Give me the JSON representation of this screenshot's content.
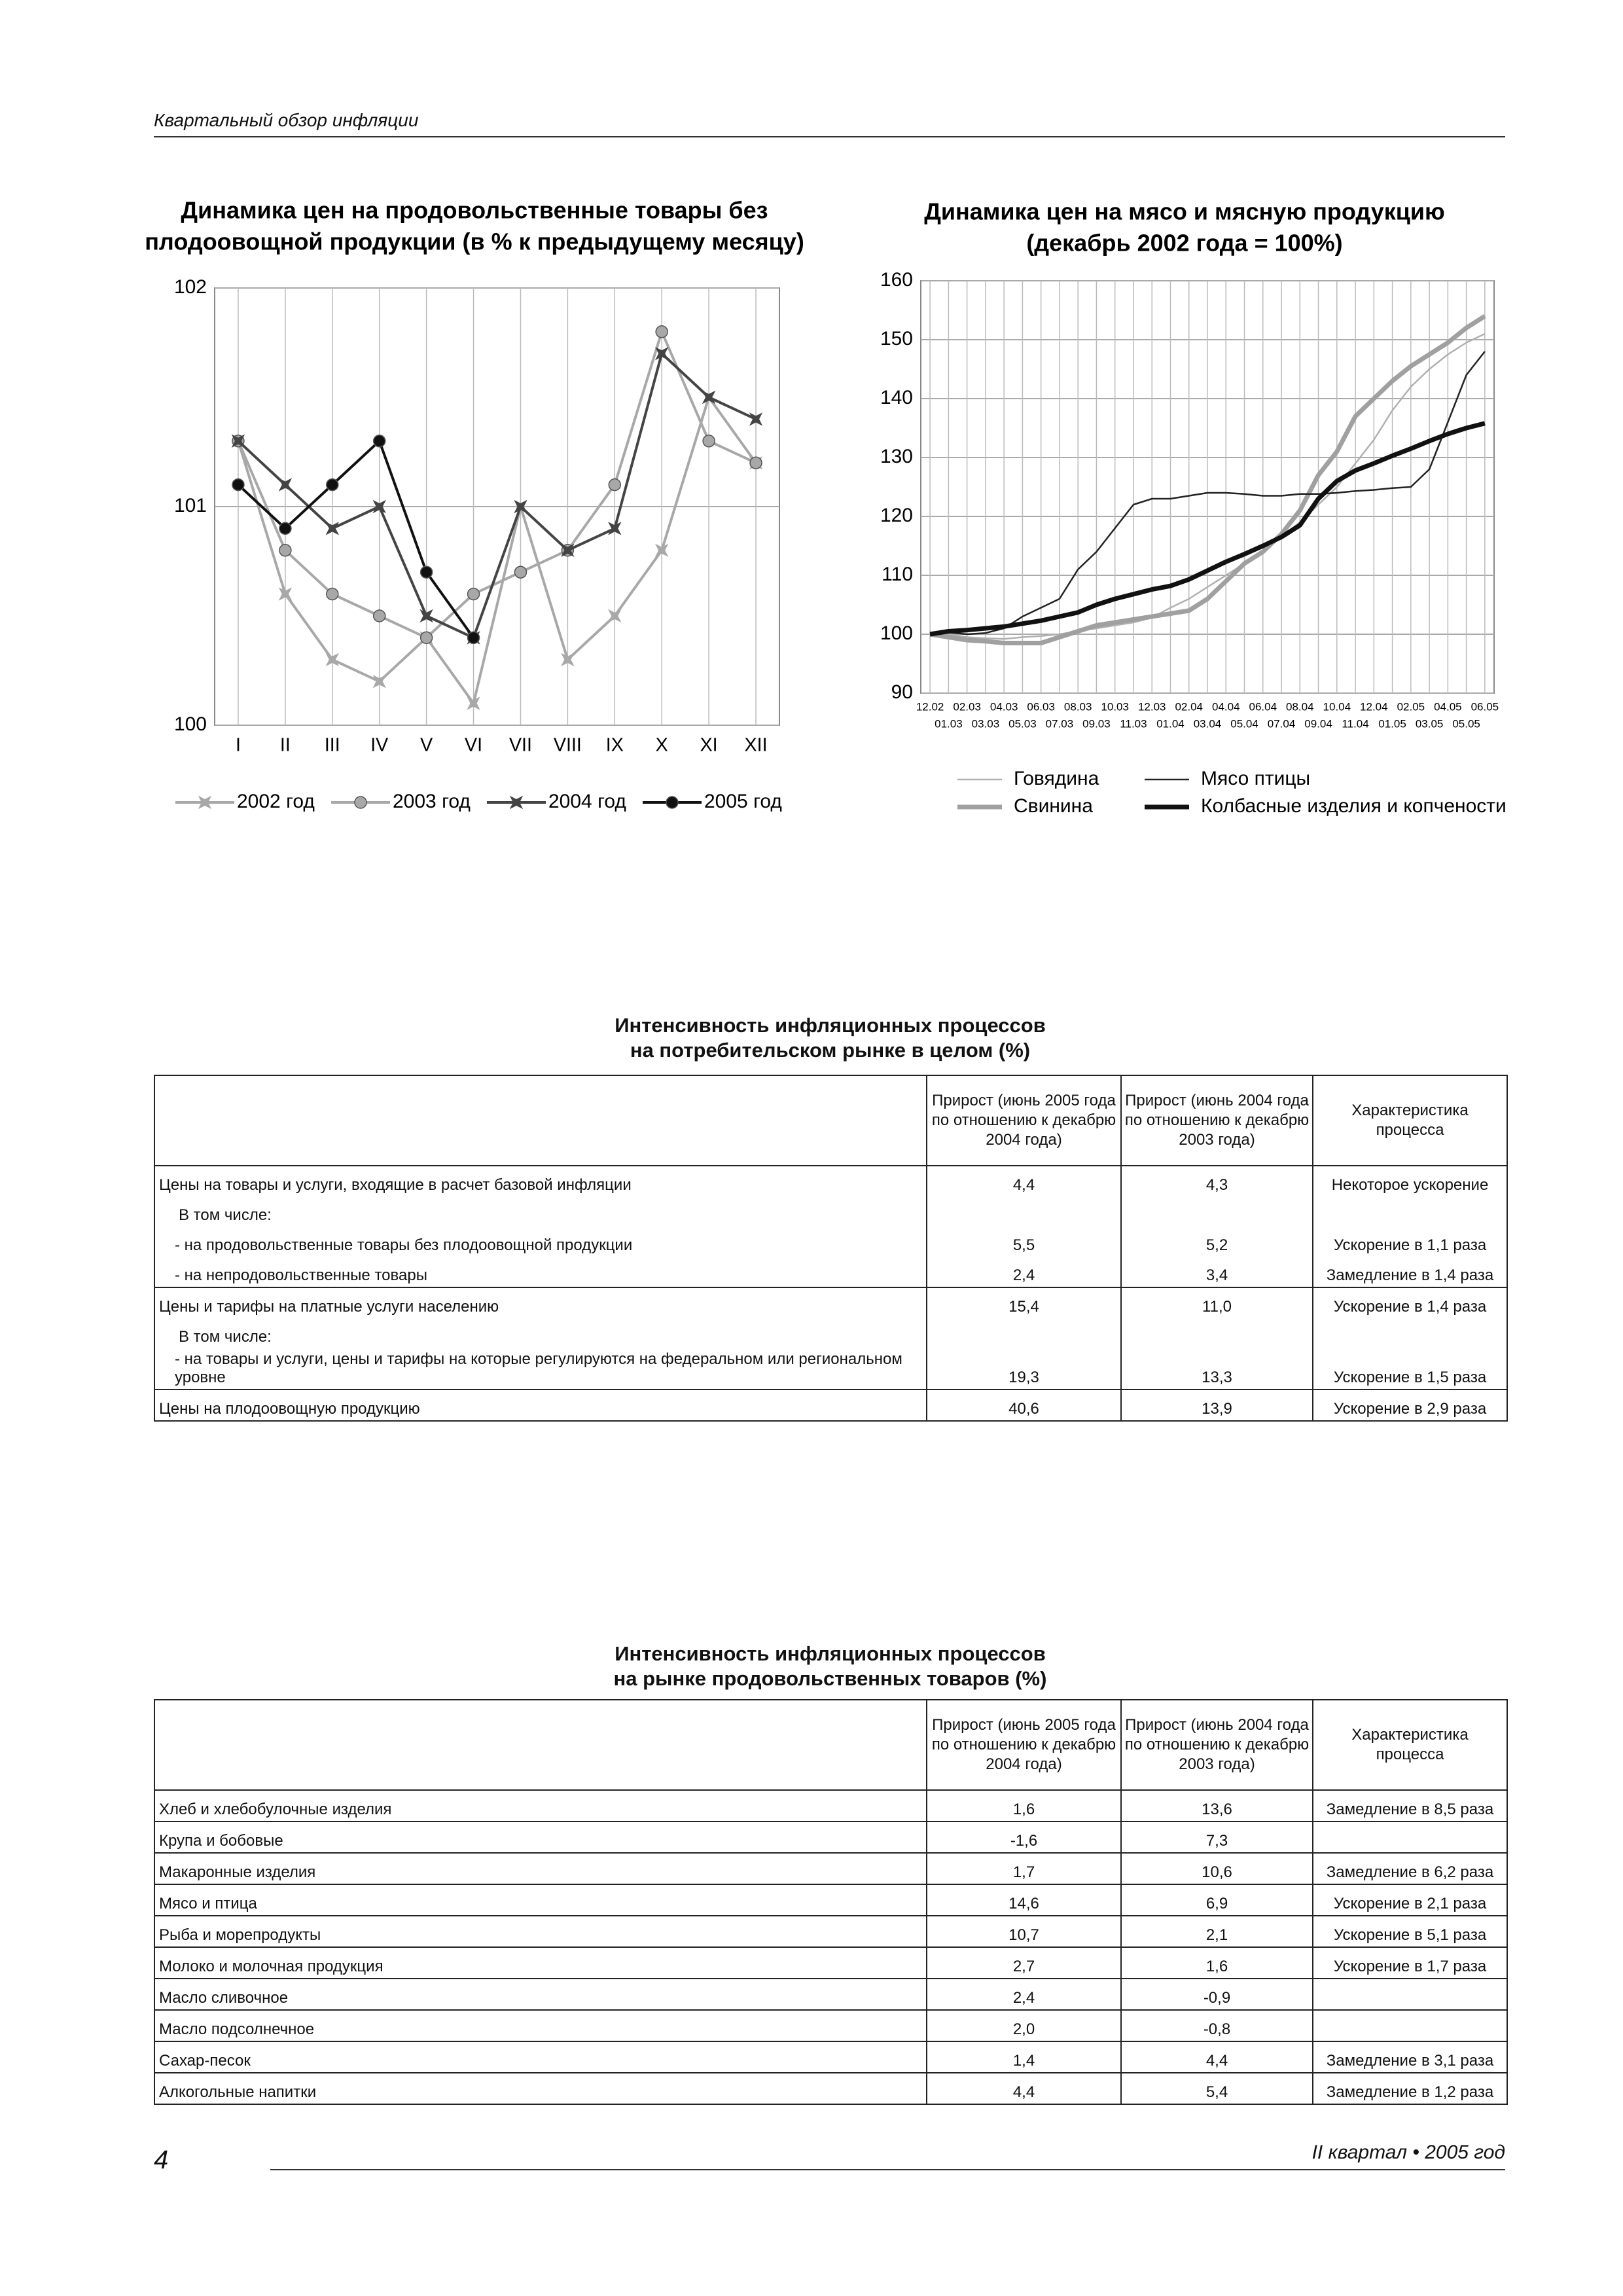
{
  "header": {
    "title": "Квартальный обзор инфляции"
  },
  "chart_data": [
    {
      "type": "line",
      "title": [
        "Динамика цен на продовольственные товары без",
        "плодоовощной продукции (в % к предыдущему месяцу)"
      ],
      "categories": [
        "I",
        "II",
        "III",
        "IV",
        "V",
        "VI",
        "VII",
        "VIII",
        "IX",
        "X",
        "XI",
        "XII"
      ],
      "ylim": [
        100,
        102
      ],
      "yticks": [
        100,
        101,
        102
      ],
      "grid": true,
      "series": [
        {
          "name": "2002 год",
          "color": "#a8a8a8",
          "marker": "star",
          "values": [
            101.3,
            100.6,
            100.3,
            100.2,
            100.4,
            100.1,
            101.0,
            100.3,
            100.5,
            100.8,
            101.5,
            101.2
          ]
        },
        {
          "name": "2003 год",
          "color": "#a8a8a8",
          "marker": "circle",
          "values": [
            101.3,
            100.8,
            100.6,
            100.5,
            100.4,
            100.6,
            100.7,
            100.8,
            101.1,
            101.8,
            101.3,
            101.2
          ]
        },
        {
          "name": "2004 год",
          "color": "#444444",
          "marker": "star",
          "values": [
            101.3,
            101.1,
            100.9,
            101.0,
            100.5,
            100.4,
            101.0,
            100.8,
            100.9,
            101.7,
            101.5,
            101.4
          ]
        },
        {
          "name": "2005 год",
          "color": "#111111",
          "marker": "circle",
          "values": [
            101.1,
            100.9,
            101.1,
            101.3,
            100.7,
            100.4,
            null,
            null,
            null,
            null,
            null,
            null
          ]
        }
      ]
    },
    {
      "type": "line",
      "title": [
        "Динамика цен на мясо и мясную продукцию",
        "(декабрь 2002 года = 100%)"
      ],
      "categories": [
        "12.02",
        "01.03",
        "02.03",
        "03.03",
        "04.03",
        "05.03",
        "06.03",
        "07.03",
        "08.03",
        "09.03",
        "10.03",
        "11.03",
        "12.03",
        "01.04",
        "02.04",
        "03.04",
        "04.04",
        "05.04",
        "06.04",
        "07.04",
        "08.04",
        "09.04",
        "10.04",
        "11.04",
        "12.04",
        "01.05",
        "02.05",
        "03.05",
        "04.05",
        "05.05",
        "06.05"
      ],
      "ylim": [
        90,
        160
      ],
      "yticks": [
        90,
        100,
        110,
        120,
        130,
        140,
        150,
        160
      ],
      "grid": true,
      "series": [
        {
          "name": "Говядина",
          "color": "#b0b0b0",
          "line": "thin",
          "values": [
            100,
            100,
            99.5,
            99.3,
            99.2,
            99.5,
            99.7,
            100,
            100.5,
            101,
            101.5,
            102,
            102.8,
            104.5,
            106,
            108,
            110,
            112,
            114,
            116.5,
            119,
            122,
            125,
            129,
            133,
            138,
            142,
            145,
            147.5,
            149.5,
            151
          ]
        },
        {
          "name": "Свинина",
          "color": "#a0a0a0",
          "line": "thick",
          "values": [
            100,
            99.5,
            99,
            98.8,
            98.5,
            98.5,
            98.5,
            99.5,
            100.5,
            101.5,
            102,
            102.5,
            103,
            103.5,
            104,
            106,
            109,
            112,
            114,
            117,
            121,
            127,
            131,
            137,
            140,
            143,
            145.5,
            147.5,
            149.5,
            152,
            154
          ]
        },
        {
          "name": "Мясо птицы",
          "color": "#222222",
          "line": "thin",
          "values": [
            100,
            100.3,
            100,
            100.2,
            101,
            103,
            104.5,
            106,
            111,
            114,
            118,
            122,
            123,
            123,
            123.5,
            124,
            124,
            123.8,
            123.5,
            123.5,
            123.8,
            123.8,
            124,
            124.3,
            124.5,
            124.8,
            125,
            128,
            136,
            144,
            148
          ]
        },
        {
          "name": "Колбасные изделия и копчености",
          "color": "#111111",
          "line": "thick",
          "values": [
            100,
            100.5,
            100.7,
            101,
            101.3,
            101.8,
            102.3,
            103,
            103.7,
            105,
            106,
            106.8,
            107.6,
            108.2,
            109.3,
            110.8,
            112.3,
            113.6,
            115,
            116.5,
            118.5,
            123,
            126,
            127.8,
            129,
            130.3,
            131.5,
            132.8,
            134,
            135,
            135.8
          ]
        }
      ]
    }
  ],
  "tables": [
    {
      "title": [
        "Интенсивность инфляционных процессов",
        "на потребительском рынке в целом (%)"
      ],
      "columns": [
        "Прирост (июнь 2005 года по отношению к декабрю 2004 года)",
        "Прирост (июнь 2004 года по отношению к декабрю 2003 года)",
        "Характеристика процесса"
      ],
      "rows": [
        [
          "Цены на товары и услуги, входящие в расчет базовой инфляции",
          "4,4",
          "4,3",
          "Некоторое ускорение"
        ],
        [
          "В том числе:"
        ],
        [
          "- на продовольственные товары без плодоовощной продукции",
          "5,5",
          "5,2",
          "Ускорение в 1,1 раза"
        ],
        [
          "- на непродовольственные товары",
          "2,4",
          "3,4",
          "Замедление в 1,4 раза"
        ],
        [
          "Цены и тарифы на платные услуги населению",
          "15,4",
          "11,0",
          "Ускорение в 1,4 раза"
        ],
        [
          "В том числе:"
        ],
        [
          "- на товары и услуги, цены и тарифы на которые регулируются на федеральном или региональном уровне",
          "19,3",
          "13,3",
          "Ускорение в 1,5 раза"
        ],
        [
          "Цены на плодоовощную продукцию",
          "40,6",
          "13,9",
          "Ускорение в 2,9 раза"
        ]
      ]
    },
    {
      "title": [
        "Интенсивность  инфляционных процессов",
        "на рынке продовольственных товаров (%)"
      ],
      "columns": [
        "Прирост (июнь 2005 года по отношению к декабрю 2004 года)",
        "Прирост (июнь 2004 года по отношению к декабрю 2003 года)",
        "Характеристика процесса"
      ],
      "rows": [
        [
          "Хлеб и хлебобулочные изделия",
          "1,6",
          "13,6",
          "Замедление в 8,5 раза"
        ],
        [
          "Крупа и бобовые",
          "-1,6",
          "7,3"
        ],
        [
          "Макаронные изделия",
          "1,7",
          "10,6",
          "Замедление в 6,2 раза"
        ],
        [
          "Мясо и птица",
          "14,6",
          "6,9",
          "Ускорение в 2,1 раза"
        ],
        [
          "Рыба и морепродукты",
          "10,7",
          "2,1",
          "Ускорение в 5,1 раза"
        ],
        [
          "Молоко и молочная продукция",
          "2,7",
          "1,6",
          "Ускорение в 1,7 раза"
        ],
        [
          "Масло сливочное",
          "2,4",
          "-0,9"
        ],
        [
          "Масло подсолнечное",
          "2,0",
          "-0,8"
        ],
        [
          "Сахар-песок",
          "1,4",
          "4,4",
          "Замедление в 3,1 раза"
        ],
        [
          "Алкогольные напитки",
          "4,4",
          "5,4",
          "Замедление в 1,2 раза"
        ]
      ]
    }
  ],
  "footer": {
    "page": "4",
    "text": "II квартал • 2005 год"
  }
}
